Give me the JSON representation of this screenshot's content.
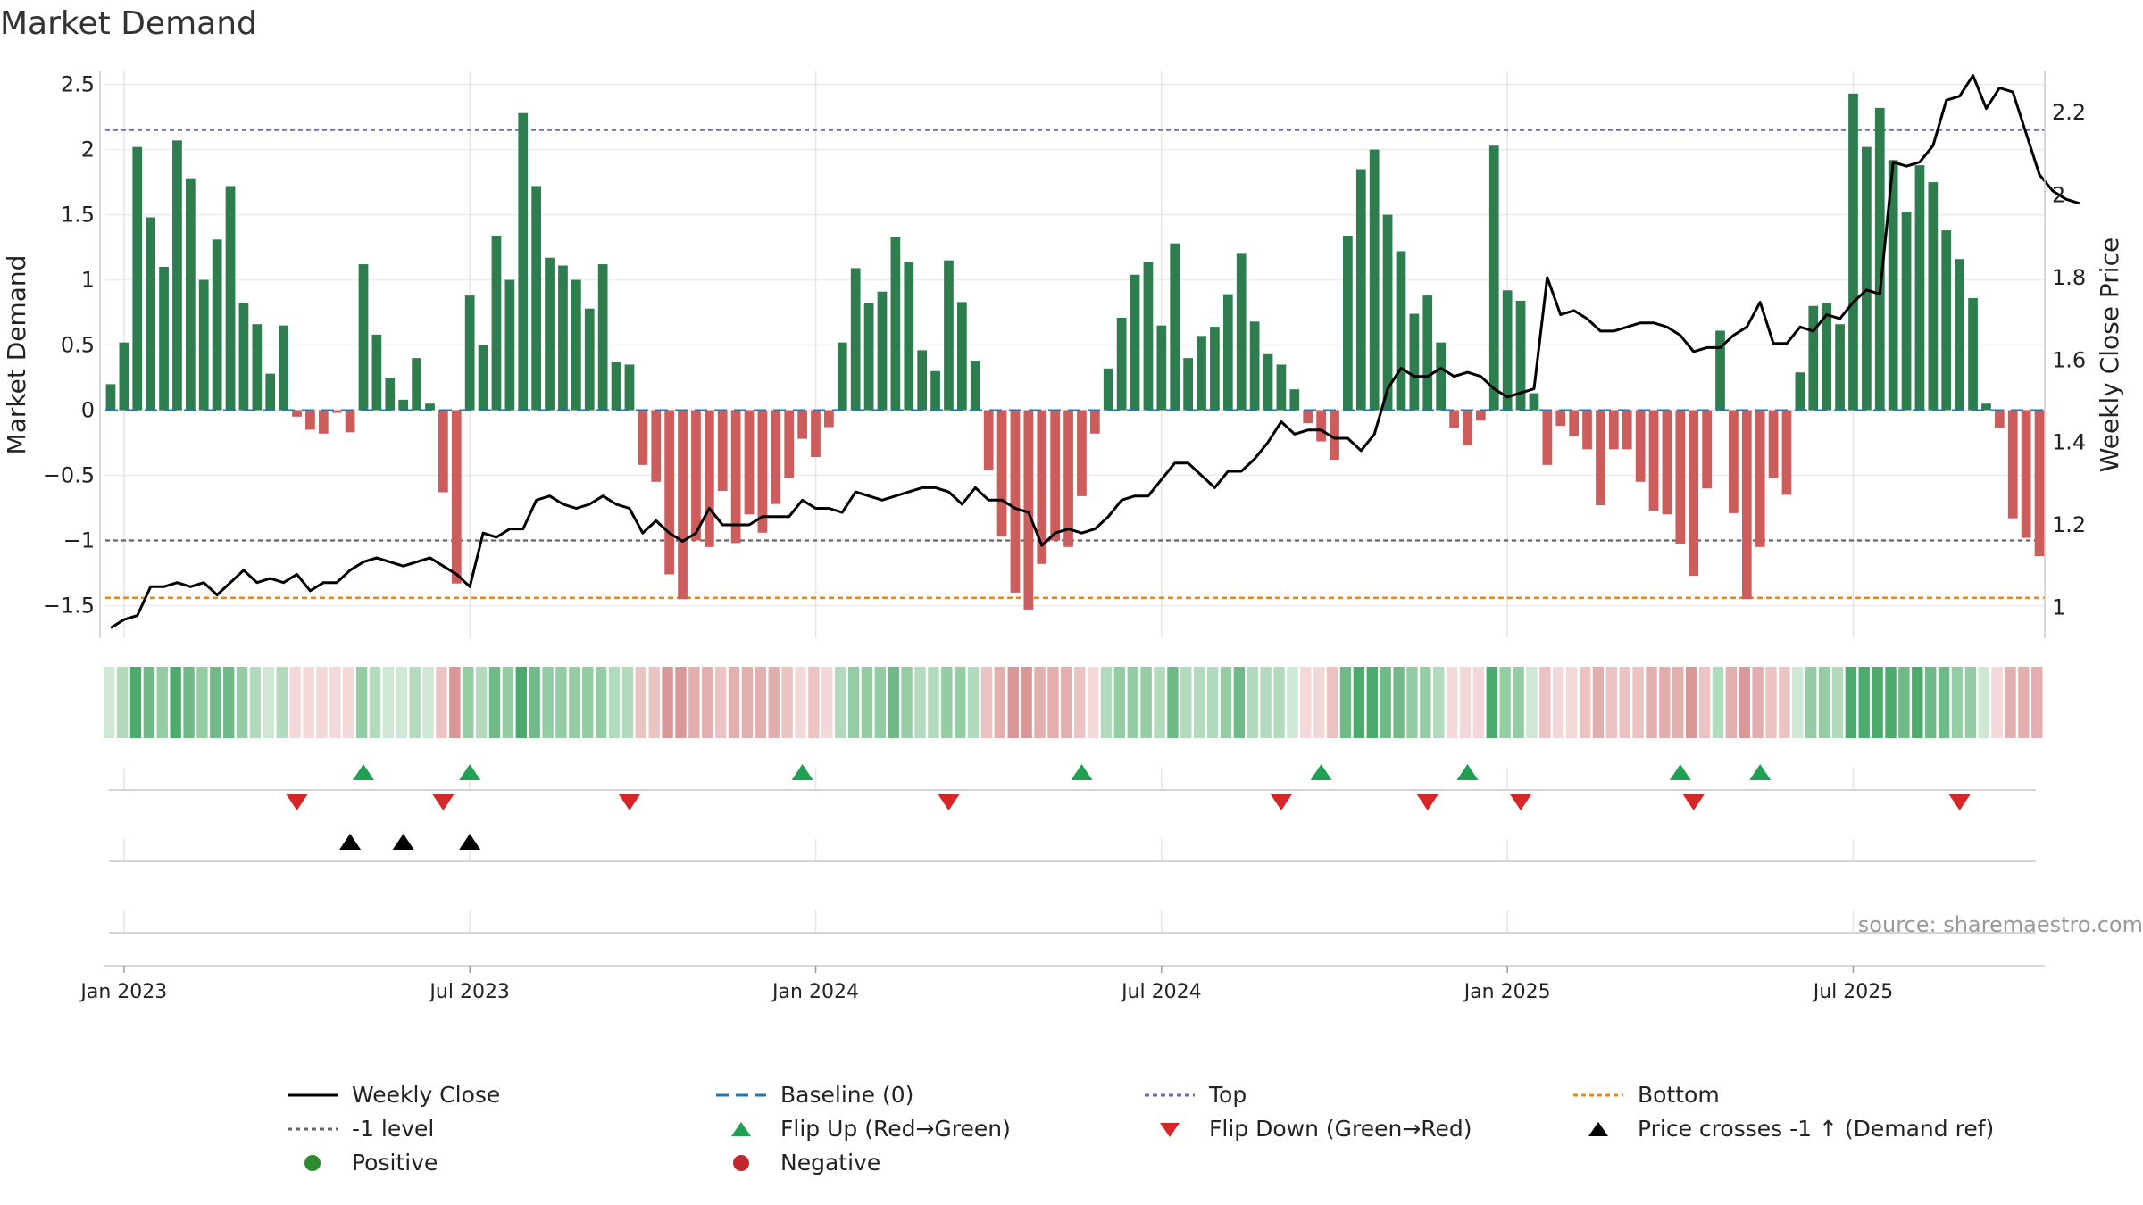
{
  "title": "Market Demand",
  "source": "source: sharemaestro.com",
  "colors": {
    "positive": "#2e7d4f",
    "negative": "#cd5c5c",
    "line": "#000000",
    "baseline": "#1f77b4",
    "top": "#6b6bb5",
    "minus_one": "#666666",
    "bottom": "#e08a1e",
    "flip_up": "#22a052",
    "flip_down": "#d62728"
  },
  "chart_data": {
    "type": "bar",
    "title": "Market Demand",
    "ylabel": "Market Demand",
    "ylabel_right": "Weekly Close Price",
    "ylim": [
      -1.75,
      2.6
    ],
    "y2lim": [
      0.925,
      2.3
    ],
    "yticks": [
      "−1.5",
      "−1",
      "−0.5",
      "0",
      "0.5",
      "1",
      "1.5",
      "2",
      "2.5"
    ],
    "yticks_values": [
      -1.5,
      -1,
      -0.5,
      0,
      0.5,
      1,
      1.5,
      2,
      2.5
    ],
    "y2ticks": [
      "1",
      "1.2",
      "1.4",
      "1.6",
      "1.8",
      "2",
      "2.2"
    ],
    "y2ticks_values": [
      1.0,
      1.2,
      1.4,
      1.6,
      1.8,
      2.0,
      2.2
    ],
    "xticks": [
      "Jan 2023",
      "Jul 2023",
      "Jan 2024",
      "Jul 2024",
      "Jan 2025",
      "Jul 2025"
    ],
    "xticks_week": [
      1,
      27,
      53,
      79,
      105,
      131
    ],
    "reference_lines": {
      "top": 2.15,
      "minus_one": -1.0,
      "bottom": -1.44,
      "baseline": 0
    },
    "demand": [
      0.2,
      0.52,
      2.02,
      1.48,
      1.1,
      2.07,
      1.78,
      1.0,
      1.31,
      1.72,
      0.82,
      0.66,
      0.28,
      0.65,
      -0.05,
      -0.15,
      -0.18,
      -0.02,
      -0.17,
      1.12,
      0.58,
      0.25,
      0.08,
      0.4,
      0.05,
      -0.63,
      -1.33,
      0.88,
      0.5,
      1.34,
      1.0,
      2.28,
      1.72,
      1.17,
      1.11,
      1.0,
      0.78,
      1.12,
      0.37,
      0.35,
      -0.42,
      -0.55,
      -1.26,
      -1.45,
      -1.0,
      -1.05,
      -0.62,
      -1.02,
      -0.8,
      -0.94,
      -0.72,
      -0.52,
      -0.22,
      -0.36,
      -0.13,
      0.52,
      1.09,
      0.82,
      0.91,
      1.33,
      1.14,
      0.46,
      0.3,
      1.15,
      0.83,
      0.38,
      -0.46,
      -0.97,
      -1.4,
      -1.53,
      -1.18,
      -1.0,
      -1.05,
      -0.66,
      -0.18,
      0.32,
      0.71,
      1.04,
      1.14,
      0.65,
      1.28,
      0.4,
      0.57,
      0.64,
      0.89,
      1.2,
      0.68,
      0.43,
      0.35,
      0.16,
      -0.1,
      -0.24,
      -0.38,
      1.34,
      1.85,
      2.0,
      1.5,
      1.22,
      0.74,
      0.88,
      0.52,
      -0.14,
      -0.27,
      -0.08,
      2.03,
      0.92,
      0.84,
      0.13,
      -0.42,
      -0.12,
      -0.2,
      -0.3,
      -0.73,
      -0.3,
      -0.3,
      -0.55,
      -0.77,
      -0.8,
      -1.03,
      -1.27,
      -0.6,
      0.61,
      -0.79,
      -1.45,
      -1.05,
      -0.52,
      -0.65,
      0.29,
      0.8,
      0.82,
      0.66,
      2.43,
      2.02,
      2.32,
      1.92,
      1.52,
      1.88,
      1.75,
      1.38,
      1.16,
      0.86,
      0.05,
      -0.14,
      -0.83,
      -0.98,
      -1.12
    ],
    "price": [
      0.95,
      0.97,
      0.98,
      1.05,
      1.05,
      1.06,
      1.05,
      1.06,
      1.03,
      1.06,
      1.09,
      1.06,
      1.07,
      1.06,
      1.08,
      1.04,
      1.06,
      1.06,
      1.09,
      1.11,
      1.12,
      1.11,
      1.1,
      1.11,
      1.12,
      1.1,
      1.08,
      1.05,
      1.18,
      1.17,
      1.19,
      1.19,
      1.26,
      1.27,
      1.25,
      1.24,
      1.25,
      1.27,
      1.25,
      1.24,
      1.18,
      1.21,
      1.18,
      1.16,
      1.18,
      1.24,
      1.2,
      1.2,
      1.2,
      1.22,
      1.22,
      1.22,
      1.26,
      1.24,
      1.24,
      1.23,
      1.28,
      1.27,
      1.26,
      1.27,
      1.28,
      1.29,
      1.29,
      1.28,
      1.25,
      1.29,
      1.26,
      1.26,
      1.24,
      1.23,
      1.15,
      1.18,
      1.19,
      1.18,
      1.19,
      1.22,
      1.26,
      1.27,
      1.27,
      1.31,
      1.35,
      1.35,
      1.32,
      1.29,
      1.33,
      1.33,
      1.36,
      1.4,
      1.45,
      1.42,
      1.43,
      1.43,
      1.41,
      1.41,
      1.38,
      1.42,
      1.53,
      1.58,
      1.56,
      1.56,
      1.58,
      1.56,
      1.57,
      1.56,
      1.53,
      1.51,
      1.52,
      1.53,
      1.8,
      1.71,
      1.72,
      1.7,
      1.67,
      1.67,
      1.68,
      1.69,
      1.69,
      1.68,
      1.66,
      1.62,
      1.63,
      1.63,
      1.66,
      1.68,
      1.74,
      1.64,
      1.64,
      1.68,
      1.67,
      1.71,
      1.7,
      1.74,
      1.77,
      1.76,
      2.08,
      2.07,
      2.08,
      2.12,
      2.23,
      2.24,
      2.29,
      2.21,
      2.26,
      2.25,
      2.15,
      2.05,
      2.01,
      1.99,
      1.98
    ],
    "heat_strip": "weekly demand intensity (green positive / red negative)",
    "flip_up_weeks": [
      19,
      27,
      52,
      73,
      91,
      102,
      118,
      124
    ],
    "flip_down_weeks": [
      14,
      25,
      39,
      63,
      88,
      99,
      106,
      119,
      139
    ],
    "price_cross_weeks": [
      18,
      22,
      27
    ]
  },
  "legend": [
    {
      "label": "Weekly Close",
      "icon": "solid-line"
    },
    {
      "label": "Baseline (0)",
      "icon": "dashed-line"
    },
    {
      "label": "Top",
      "icon": "dotted-line"
    },
    {
      "label": "Bottom",
      "icon": "dotted-line"
    },
    {
      "label": "-1 level",
      "icon": "dotted-line"
    },
    {
      "label": "Flip Up (Red→Green)",
      "icon": "triangle-up"
    },
    {
      "label": "Flip Down (Green→Red)",
      "icon": "triangle-down"
    },
    {
      "label": "Price crosses -1 ↑ (Demand ref)",
      "icon": "triangle-up"
    },
    {
      "label": "Positive",
      "icon": "circle"
    },
    {
      "label": "Negative",
      "icon": "circle"
    }
  ]
}
